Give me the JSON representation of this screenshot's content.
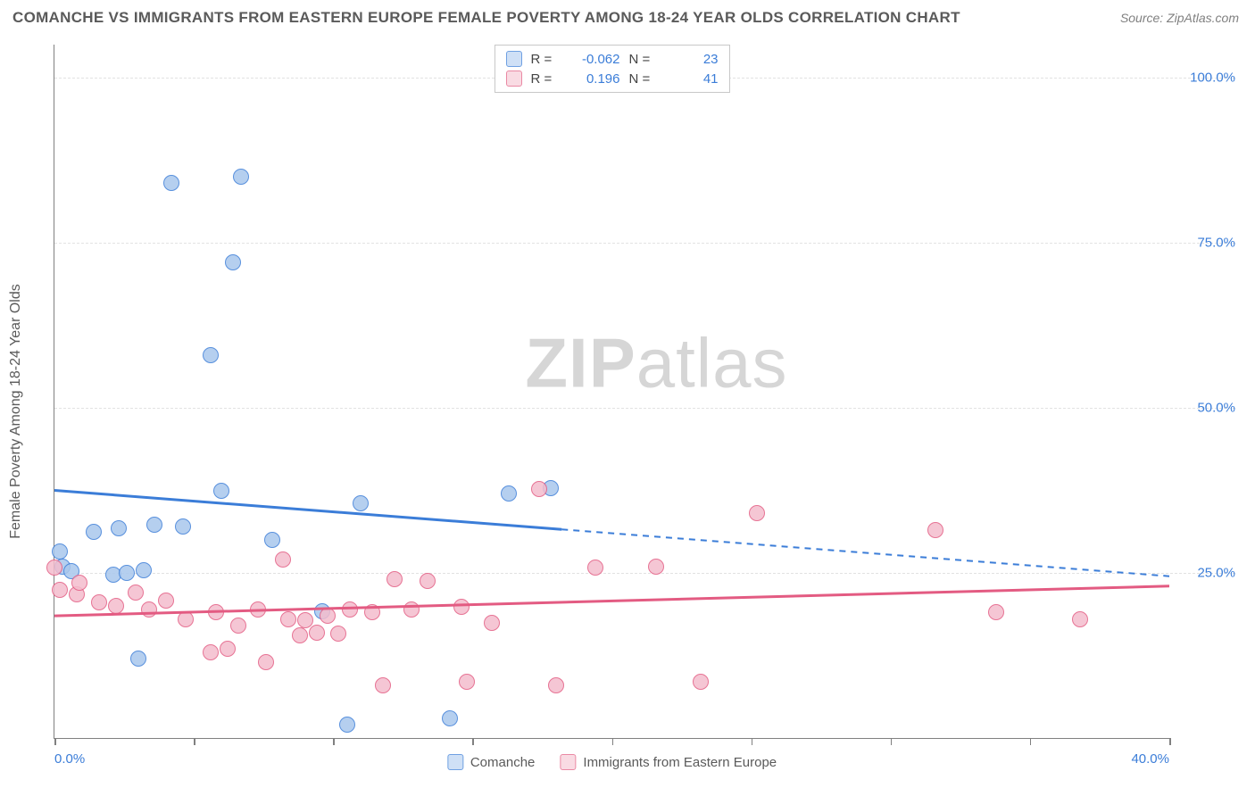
{
  "header": {
    "title": "COMANCHE VS IMMIGRANTS FROM EASTERN EUROPE FEMALE POVERTY AMONG 18-24 YEAR OLDS CORRELATION CHART",
    "source": "Source: ZipAtlas.com"
  },
  "chart": {
    "type": "scatter",
    "y_label": "Female Poverty Among 18-24 Year Olds",
    "xlim": [
      0,
      40
    ],
    "ylim": [
      0,
      105
    ],
    "x_ticks": [
      0,
      5,
      10,
      15,
      20,
      25,
      30,
      35,
      40
    ],
    "x_tick_labels": {
      "0": "0.0%",
      "40": "40.0%"
    },
    "y_gridlines": [
      25,
      50,
      75,
      100
    ],
    "y_tick_labels": {
      "25": "25.0%",
      "50": "50.0%",
      "75": "75.0%",
      "100": "100.0%"
    },
    "background_color": "#ffffff",
    "grid_color": "#e2e2e2",
    "axis_color": "#808080",
    "tick_label_color": "#3b7dd8",
    "marker_radius": 9,
    "marker_stroke_width": 1.5,
    "marker_fill_opacity": 0.28,
    "watermark": {
      "bold": "ZIP",
      "rest": "atlas"
    },
    "series": {
      "comanche": {
        "label": "Comanche",
        "color": "#3b7dd8",
        "fill": "#a9c7ed",
        "legend_swatch_bg": "#cfe0f6",
        "legend_swatch_border": "#6fa0e2",
        "r": "-0.062",
        "n": "23",
        "trend": {
          "y_at_x0": 37.5,
          "y_at_x40": 24.5,
          "solid_until_x": 18.2
        },
        "points": [
          {
            "x": 0.2,
            "y": 28.2
          },
          {
            "x": 0.3,
            "y": 26.0
          },
          {
            "x": 0.6,
            "y": 25.3
          },
          {
            "x": 1.4,
            "y": 31.2
          },
          {
            "x": 2.1,
            "y": 24.7
          },
          {
            "x": 2.3,
            "y": 31.8
          },
          {
            "x": 2.6,
            "y": 25.0
          },
          {
            "x": 3.0,
            "y": 12.0
          },
          {
            "x": 3.2,
            "y": 25.4
          },
          {
            "x": 3.6,
            "y": 32.3
          },
          {
            "x": 4.2,
            "y": 84.0
          },
          {
            "x": 4.6,
            "y": 32.0
          },
          {
            "x": 5.6,
            "y": 58.0
          },
          {
            "x": 6.0,
            "y": 37.5
          },
          {
            "x": 6.4,
            "y": 72.0
          },
          {
            "x": 6.7,
            "y": 85.0
          },
          {
            "x": 7.8,
            "y": 30.0
          },
          {
            "x": 9.6,
            "y": 19.2
          },
          {
            "x": 10.5,
            "y": 2.0
          },
          {
            "x": 11.0,
            "y": 35.5
          },
          {
            "x": 14.2,
            "y": 3.0
          },
          {
            "x": 16.3,
            "y": 37.0
          },
          {
            "x": 17.8,
            "y": 37.8
          }
        ]
      },
      "immigrants": {
        "label": "Immigrants from Eastern Europe",
        "color": "#e35b82",
        "fill": "#f4bdcd",
        "legend_swatch_bg": "#f9dbe3",
        "legend_swatch_border": "#ea89a4",
        "r": "0.196",
        "n": "41",
        "trend": {
          "y_at_x0": 18.5,
          "y_at_x40": 23.0,
          "solid_until_x": 40
        },
        "points": [
          {
            "x": 0.0,
            "y": 25.8
          },
          {
            "x": 0.2,
            "y": 22.5
          },
          {
            "x": 0.8,
            "y": 21.8
          },
          {
            "x": 0.9,
            "y": 23.5
          },
          {
            "x": 1.6,
            "y": 20.5
          },
          {
            "x": 2.2,
            "y": 20.0
          },
          {
            "x": 2.9,
            "y": 22.0
          },
          {
            "x": 3.4,
            "y": 19.5
          },
          {
            "x": 4.0,
            "y": 20.8
          },
          {
            "x": 4.7,
            "y": 18.0
          },
          {
            "x": 5.6,
            "y": 13.0
          },
          {
            "x": 5.8,
            "y": 19.0
          },
          {
            "x": 6.2,
            "y": 13.5
          },
          {
            "x": 6.6,
            "y": 17.0
          },
          {
            "x": 7.3,
            "y": 19.5
          },
          {
            "x": 7.6,
            "y": 11.5
          },
          {
            "x": 8.2,
            "y": 27.0
          },
          {
            "x": 8.4,
            "y": 18.0
          },
          {
            "x": 8.8,
            "y": 15.5
          },
          {
            "x": 9.0,
            "y": 17.8
          },
          {
            "x": 9.4,
            "y": 16.0
          },
          {
            "x": 9.8,
            "y": 18.5
          },
          {
            "x": 10.2,
            "y": 15.8
          },
          {
            "x": 10.6,
            "y": 19.5
          },
          {
            "x": 11.4,
            "y": 19.0
          },
          {
            "x": 11.8,
            "y": 8.0
          },
          {
            "x": 12.2,
            "y": 24.0
          },
          {
            "x": 12.8,
            "y": 19.5
          },
          {
            "x": 13.4,
            "y": 23.8
          },
          {
            "x": 14.6,
            "y": 19.8
          },
          {
            "x": 14.8,
            "y": 8.5
          },
          {
            "x": 15.7,
            "y": 17.5
          },
          {
            "x": 17.4,
            "y": 37.7
          },
          {
            "x": 18.0,
            "y": 8.0
          },
          {
            "x": 19.4,
            "y": 25.8
          },
          {
            "x": 21.6,
            "y": 26.0
          },
          {
            "x": 23.2,
            "y": 8.5
          },
          {
            "x": 25.2,
            "y": 34.0
          },
          {
            "x": 31.6,
            "y": 31.5
          },
          {
            "x": 33.8,
            "y": 19.0
          },
          {
            "x": 36.8,
            "y": 18.0
          }
        ]
      }
    }
  }
}
